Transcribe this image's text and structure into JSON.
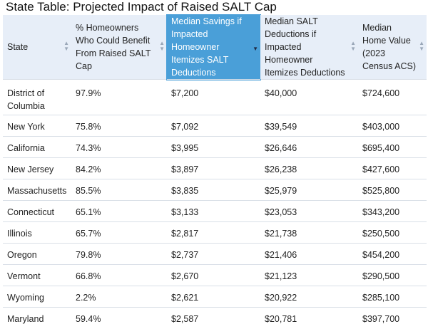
{
  "title": "State Table: Projected Impact of Raised SALT Cap",
  "columns": [
    "State",
    "% Homeowners Who Could Benefit From Raised SALT Cap",
    "Median Savings if Impacted Homeowner Itemizes SALT Deductions",
    "Median SALT Deductions if Impacted Homeowner Itemizes Deductions",
    "Median Home Value (2023 Census ACS)"
  ],
  "sort_icons": {
    "up": "▲",
    "down": "▼"
  },
  "rows": [
    [
      "District of Columbia",
      "97.9%",
      "$7,200",
      "$40,000",
      "$724,600"
    ],
    [
      "New York",
      "75.8%",
      "$7,092",
      "$39,549",
      "$403,000"
    ],
    [
      "California",
      "74.3%",
      "$3,995",
      "$26,646",
      "$695,400"
    ],
    [
      "New Jersey",
      "84.2%",
      "$3,897",
      "$26,238",
      "$427,600"
    ],
    [
      "Massachusetts",
      "85.5%",
      "$3,835",
      "$25,979",
      "$525,800"
    ],
    [
      "Connecticut",
      "65.1%",
      "$3,133",
      "$23,053",
      "$343,200"
    ],
    [
      "Illinois",
      "65.7%",
      "$2,817",
      "$21,738",
      "$250,500"
    ],
    [
      "Oregon",
      "79.8%",
      "$2,737",
      "$21,406",
      "$454,200"
    ],
    [
      "Vermont",
      "66.8%",
      "$2,670",
      "$21,123",
      "$290,500"
    ],
    [
      "Wyoming",
      "2.2%",
      "$2,621",
      "$20,922",
      "$285,100"
    ],
    [
      "Maryland",
      "59.4%",
      "$2,587",
      "$20,781",
      "$397,700"
    ]
  ]
}
